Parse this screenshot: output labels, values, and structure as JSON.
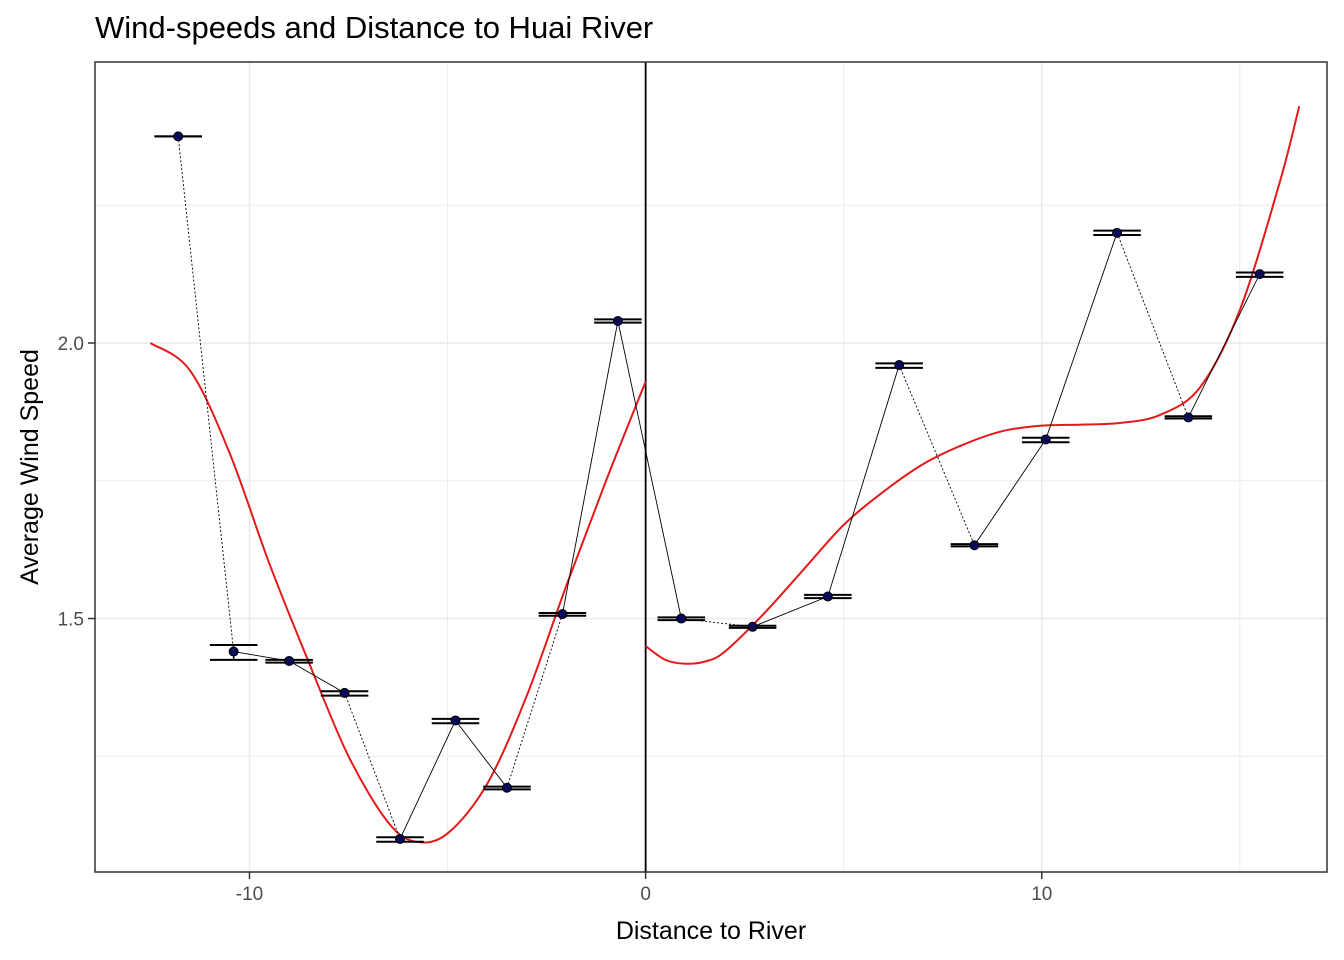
{
  "chart_data": {
    "type": "scatter",
    "title": "Wind-speeds and Distance to Huai River",
    "xlabel": "Distance to River",
    "ylabel": "Average Wind Speed",
    "xlim": [
      -13.9,
      17.2
    ],
    "ylim": [
      1.04,
      2.51
    ],
    "x_ticks": [
      -10,
      0,
      10
    ],
    "x_tick_labels": [
      "-10",
      "0",
      "10"
    ],
    "x_minor_ticks": [
      -15,
      -5,
      5,
      15
    ],
    "y_ticks": [
      1.5,
      2.0
    ],
    "y_tick_labels": [
      "1.5",
      "2.0"
    ],
    "y_minor_ticks": [
      1.25,
      1.75,
      2.25
    ],
    "grid": true,
    "vline_x": 0,
    "colors": {
      "points": "#0a0a5c",
      "fit": "#e31a1c",
      "lines": "#000000",
      "grid": "#ebebeb"
    },
    "series": [
      {
        "type": "points_with_errorbars",
        "x": [
          -11.8,
          -10.4,
          -9.0,
          -7.6,
          -6.2,
          -4.8,
          -3.5,
          -2.1,
          -0.7,
          0.9,
          2.7,
          4.6,
          6.4,
          8.3,
          10.1,
          11.9,
          13.7,
          15.5
        ],
        "y": [
          2.375,
          1.44,
          1.423,
          1.365,
          1.1,
          1.315,
          1.193,
          1.508,
          2.04,
          1.5,
          1.485,
          1.54,
          1.96,
          1.633,
          1.825,
          2.2,
          1.865,
          2.125
        ],
        "err_low": [
          2.375,
          1.425,
          1.42,
          1.36,
          1.095,
          1.31,
          1.19,
          1.505,
          2.037,
          1.497,
          1.483,
          1.537,
          1.955,
          1.631,
          1.82,
          2.196,
          1.863,
          2.12
        ],
        "err_high": [
          2.375,
          1.452,
          1.425,
          1.368,
          1.103,
          1.318,
          1.195,
          1.51,
          2.043,
          1.502,
          1.487,
          1.543,
          1.963,
          1.635,
          1.828,
          2.204,
          1.867,
          2.128
        ]
      },
      {
        "type": "fit_left",
        "x": [
          -12.5,
          -11.5,
          -10.5,
          -9.5,
          -8.5,
          -7.5,
          -6.5,
          -5.8,
          -5.0,
          -4.0,
          -3.0,
          -2.0,
          -1.0,
          0.0
        ],
        "y": [
          2.0,
          1.95,
          1.8,
          1.6,
          1.42,
          1.25,
          1.13,
          1.095,
          1.11,
          1.2,
          1.36,
          1.56,
          1.75,
          1.93
        ]
      },
      {
        "type": "fit_right",
        "x": [
          0.0,
          0.5,
          1.0,
          1.5,
          2.0,
          3.0,
          4.0,
          5.0,
          6.0,
          7.0,
          8.0,
          9.0,
          10.0,
          11.0,
          12.0,
          13.0,
          14.0,
          15.0,
          16.0,
          16.5
        ],
        "y": [
          1.45,
          1.425,
          1.418,
          1.422,
          1.44,
          1.51,
          1.59,
          1.67,
          1.73,
          1.78,
          1.815,
          1.84,
          1.85,
          1.852,
          1.855,
          1.87,
          1.92,
          2.06,
          2.29,
          2.43
        ]
      }
    ]
  }
}
